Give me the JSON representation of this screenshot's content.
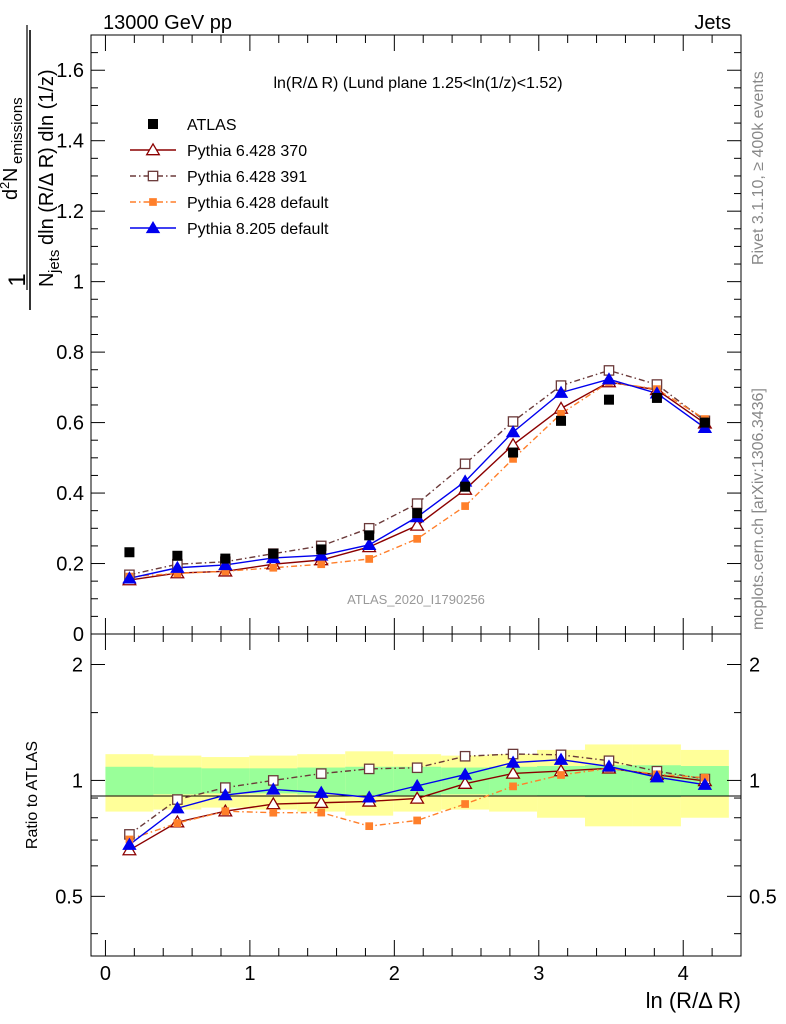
{
  "header": {
    "energy": "13000 GeV pp",
    "category": "Jets"
  },
  "side": {
    "rivet": "Rivet 3.1.10, ≥ 400k events",
    "mcplots": "mcplots.cern.ch [arXiv:1306.3436]"
  },
  "watermark": "ATLAS_2020_I1790256",
  "upper": {
    "title": "ln(R/Δ R) (Lund plane 1.25<ln(1/z)<1.52)",
    "ylabel": {
      "frac1": "1",
      "num_a": "d",
      "num_b": "2",
      "num_c": "N",
      "num_d": "emissions",
      "den_a": "N",
      "den_b": "jets",
      "den_c": "dln (R/Δ R) dln (1/z)"
    },
    "ylim": [
      0,
      1.7
    ],
    "yticks": [
      "0",
      "0.2",
      "0.4",
      "0.6",
      "0.8",
      "1",
      "1.2",
      "1.4",
      "1.6"
    ]
  },
  "lower": {
    "ylabel": "Ratio to ATLAS",
    "yticks": [
      "0.5",
      "1",
      "2"
    ]
  },
  "xaxis": {
    "label": "ln (R/Δ R)",
    "ticks": [
      "0",
      "1",
      "2",
      "3",
      "4"
    ],
    "xlim": [
      -0.1,
      4.4
    ]
  },
  "legend": [
    {
      "label": "ATLAS"
    },
    {
      "label": "Pythia 6.428 370"
    },
    {
      "label": "Pythia 6.428 391"
    },
    {
      "label": "Pythia 6.428 default"
    },
    {
      "label": "Pythia 8.205 default"
    }
  ],
  "chart_data": {
    "type": "line",
    "title": "ln(R/Δ R) (Lund plane 1.25<ln(1/z)<1.52)",
    "xlabel": "ln (R/Δ R)",
    "ylabel": "1/N_jets d²N_emissions / dln(R/ΔR) dln(1/z)",
    "xlim": [
      -0.1,
      4.4
    ],
    "ylim": [
      0,
      1.7
    ],
    "ratio_ylim": [
      0.35,
      2.4
    ],
    "x": [
      0.166,
      0.498,
      0.83,
      1.162,
      1.494,
      1.826,
      2.158,
      2.49,
      2.822,
      3.154,
      3.486,
      3.818,
      4.15
    ],
    "data": {
      "name": "ATLAS",
      "color": "#000000",
      "values": [
        0.232,
        0.222,
        0.214,
        0.228,
        0.24,
        0.28,
        0.343,
        0.418,
        0.515,
        0.605,
        0.665,
        0.67,
        0.6
      ],
      "band_inner": [
        0.085,
        0.08,
        0.075,
        0.075,
        0.08,
        0.085,
        0.085,
        0.08,
        0.085,
        0.09,
        0.095,
        0.095,
        0.09
      ],
      "band_outer": [
        0.17,
        0.16,
        0.15,
        0.16,
        0.17,
        0.19,
        0.17,
        0.16,
        0.17,
        0.2,
        0.24,
        0.24,
        0.2
      ]
    },
    "series": [
      {
        "name": "Pythia 6.428 370",
        "color": "#8b0000",
        "marker": "open-triangle",
        "dash": "",
        "values": [
          0.153,
          0.173,
          0.178,
          0.198,
          0.21,
          0.247,
          0.308,
          0.41,
          0.537,
          0.64,
          0.715,
          0.693,
          0.598
        ]
      },
      {
        "name": "Pythia 6.428 391",
        "color": "#6b3a3a",
        "marker": "open-square",
        "dash": "6,3,1.5,3",
        "values": [
          0.168,
          0.198,
          0.205,
          0.228,
          0.25,
          0.3,
          0.37,
          0.483,
          0.603,
          0.705,
          0.748,
          0.708,
          0.605
        ]
      },
      {
        "name": "Pythia 6.428 default",
        "color": "#ff7f2a",
        "marker": "filled-square",
        "dash": "6,3,1.5,3",
        "values": [
          0.163,
          0.172,
          0.178,
          0.188,
          0.198,
          0.213,
          0.27,
          0.363,
          0.497,
          0.625,
          0.715,
          0.695,
          0.61
        ]
      },
      {
        "name": "Pythia 8.205 default",
        "color": "#0000ee",
        "marker": "filled-triangle",
        "dash": "",
        "values": [
          0.158,
          0.188,
          0.196,
          0.216,
          0.223,
          0.253,
          0.332,
          0.433,
          0.573,
          0.685,
          0.723,
          0.683,
          0.585
        ]
      }
    ]
  }
}
